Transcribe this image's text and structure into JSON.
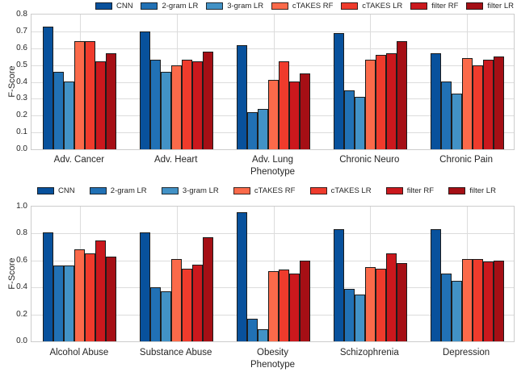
{
  "figure": {
    "ylabel": "F-Score"
  },
  "series": [
    {
      "name": "CNN",
      "color": "#08519c"
    },
    {
      "name": "2-gram LR",
      "color": "#2171b5"
    },
    {
      "name": "3-gram LR",
      "color": "#4292c6"
    },
    {
      "name": "cTAKES RF",
      "color": "#fb6a4a"
    },
    {
      "name": "cTAKES LR",
      "color": "#ef3b2c"
    },
    {
      "name": "filter RF",
      "color": "#cb181d"
    },
    {
      "name": "filter LR",
      "color": "#a50f15"
    }
  ],
  "chart_data": [
    {
      "type": "bar",
      "title": "",
      "ylabel": "F-Score",
      "ylim": [
        0,
        0.8
      ],
      "yticks": [
        0.0,
        0.1,
        0.2,
        0.3,
        0.4,
        0.5,
        0.6,
        0.7,
        0.8
      ],
      "grid": true,
      "legend_position": "top",
      "categories": [
        "Adv. Cancer",
        "Adv. Heart",
        "Adv. Lung\nPhenotype",
        "Chronic Neuro",
        "Chronic Pain"
      ],
      "series": [
        {
          "name": "CNN",
          "values": [
            0.73,
            0.7,
            0.62,
            0.69,
            0.57
          ]
        },
        {
          "name": "2-gram LR",
          "values": [
            0.46,
            0.53,
            0.22,
            0.35,
            0.4
          ]
        },
        {
          "name": "3-gram LR",
          "values": [
            0.4,
            0.46,
            0.24,
            0.31,
            0.33
          ]
        },
        {
          "name": "cTAKES RF",
          "values": [
            0.64,
            0.5,
            0.41,
            0.53,
            0.54
          ]
        },
        {
          "name": "cTAKES LR",
          "values": [
            0.64,
            0.53,
            0.52,
            0.56,
            0.5
          ]
        },
        {
          "name": "filter RF",
          "values": [
            0.52,
            0.52,
            0.4,
            0.57,
            0.53
          ]
        },
        {
          "name": "filter LR",
          "values": [
            0.57,
            0.58,
            0.45,
            0.64,
            0.55
          ]
        }
      ]
    },
    {
      "type": "bar",
      "title": "",
      "ylabel": "F-Score",
      "ylim": [
        0,
        1.0
      ],
      "yticks": [
        0.0,
        0.2,
        0.4,
        0.6,
        0.8,
        1.0
      ],
      "grid": true,
      "legend_position": "top",
      "categories": [
        "Alcohol Abuse",
        "Substance Abuse",
        "Obesity\nPhenotype",
        "Schizophrenia",
        "Depression"
      ],
      "series": [
        {
          "name": "CNN",
          "values": [
            0.81,
            0.81,
            0.96,
            0.83,
            0.83
          ]
        },
        {
          "name": "2-gram LR",
          "values": [
            0.56,
            0.4,
            0.17,
            0.39,
            0.5
          ]
        },
        {
          "name": "3-gram LR",
          "values": [
            0.56,
            0.37,
            0.09,
            0.35,
            0.45
          ]
        },
        {
          "name": "cTAKES RF",
          "values": [
            0.68,
            0.61,
            0.52,
            0.55,
            0.61
          ]
        },
        {
          "name": "cTAKES LR",
          "values": [
            0.65,
            0.54,
            0.53,
            0.54,
            0.61
          ]
        },
        {
          "name": "filter RF",
          "values": [
            0.75,
            0.57,
            0.5,
            0.65,
            0.59
          ]
        },
        {
          "name": "filter LR",
          "values": [
            0.63,
            0.77,
            0.6,
            0.58,
            0.6
          ]
        }
      ]
    }
  ]
}
